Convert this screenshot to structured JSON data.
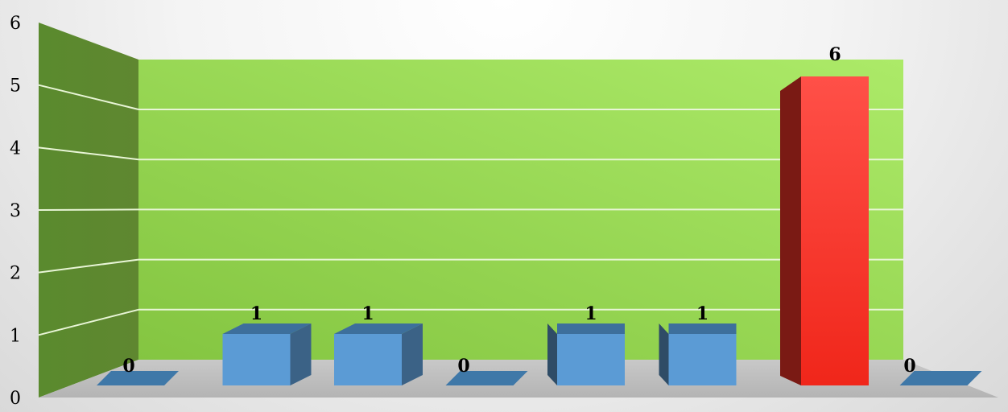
{
  "chart_data": {
    "type": "bar",
    "categories": [
      "",
      "",
      "",
      "",
      "",
      "",
      "",
      ""
    ],
    "values": [
      0,
      1,
      1,
      0,
      1,
      1,
      6,
      0
    ],
    "ylim": [
      0,
      6
    ],
    "yticks": [
      0,
      1,
      2,
      3,
      4,
      5,
      6
    ],
    "grid": true,
    "legend": "none",
    "three_d": true,
    "colors": {
      "bar": "#5b9bd5",
      "highlight_bar": "#ff2d20",
      "back_wall": "#92d050",
      "side_wall": "#5f8730",
      "floor": "#bfbfbf",
      "gridline": "#e8f5d6"
    },
    "highlight_index": 6
  }
}
